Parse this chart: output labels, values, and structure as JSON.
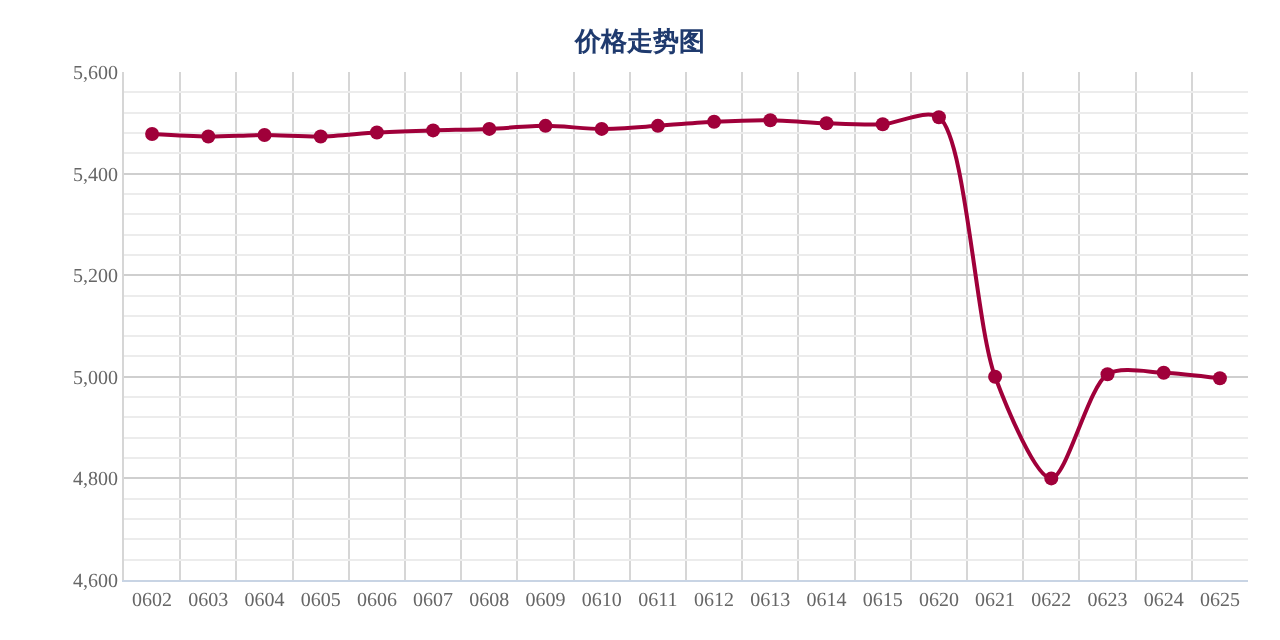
{
  "chart_data": {
    "type": "line",
    "title": "价格走势图",
    "categories": [
      "0602",
      "0603",
      "0604",
      "0605",
      "0606",
      "0607",
      "0608",
      "0609",
      "0610",
      "0611",
      "0612",
      "0613",
      "0614",
      "0615",
      "0620",
      "0621",
      "0622",
      "0623",
      "0624",
      "0625"
    ],
    "series": [
      {
        "color": "#a0003a",
        "values": [
          5478,
          5473,
          5476,
          5473,
          5481,
          5485,
          5488,
          5494,
          5488,
          5494,
          5502,
          5505,
          5499,
          5497,
          5511,
          5000,
          4800,
          5005,
          5008,
          4997
        ]
      }
    ],
    "ylim": [
      4600,
      5600
    ],
    "yticks": [
      {
        "value": 4600,
        "label": "4,600"
      },
      {
        "value": 4640,
        "label": null
      },
      {
        "value": 4680,
        "label": null
      },
      {
        "value": 4720,
        "label": null
      },
      {
        "value": 4760,
        "label": null
      },
      {
        "value": 4800,
        "label": "4,800"
      },
      {
        "value": 4840,
        "label": null
      },
      {
        "value": 4880,
        "label": null
      },
      {
        "value": 4920,
        "label": null
      },
      {
        "value": 4960,
        "label": null
      },
      {
        "value": 5000,
        "label": "5,000"
      },
      {
        "value": 5040,
        "label": null
      },
      {
        "value": 5080,
        "label": null
      },
      {
        "value": 5120,
        "label": null
      },
      {
        "value": 5160,
        "label": null
      },
      {
        "value": 5200,
        "label": "5,200"
      },
      {
        "value": 5240,
        "label": null
      },
      {
        "value": 5280,
        "label": null
      },
      {
        "value": 5320,
        "label": null
      },
      {
        "value": 5360,
        "label": null
      },
      {
        "value": 5400,
        "label": "5,400"
      },
      {
        "value": 5440,
        "label": null
      },
      {
        "value": 5480,
        "label": null
      },
      {
        "value": 5520,
        "label": null
      },
      {
        "value": 5560,
        "label": null
      },
      {
        "value": 5600,
        "label": "5,600"
      }
    ],
    "grid": true,
    "marker": "circle",
    "line_style": "solid"
  }
}
